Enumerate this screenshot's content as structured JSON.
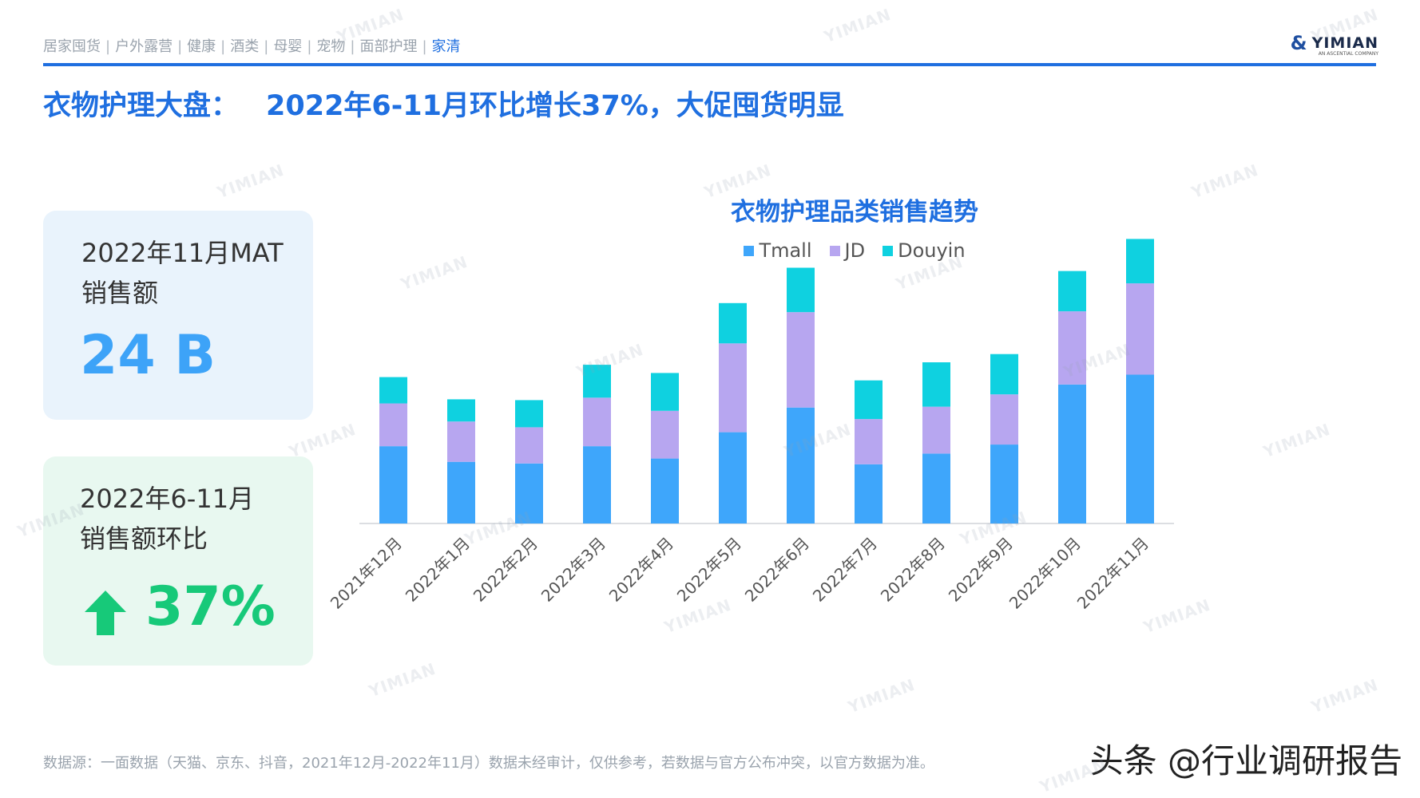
{
  "header": {
    "nav_items": [
      {
        "label": "居家囤货",
        "active": false
      },
      {
        "label": "户外露营",
        "active": false
      },
      {
        "label": "健康",
        "active": false
      },
      {
        "label": "酒类",
        "active": false
      },
      {
        "label": "母婴",
        "active": false
      },
      {
        "label": "宠物",
        "active": false
      },
      {
        "label": "面部护理",
        "active": false
      },
      {
        "label": "家清",
        "active": true
      }
    ],
    "separator": "|",
    "logo_text": "YIMIAN",
    "logo_subtext": "AN ASCENTIAL COMPANY",
    "accent_color": "#1f6fe0"
  },
  "page_title": {
    "prefix": "衣物护理大盘：",
    "headline": "2022年6-11月环比增长37%，大促囤货明显"
  },
  "cards": {
    "mat": {
      "label_line1": "2022年11月MAT",
      "label_line2": "销售额",
      "value": "24 B",
      "color": "#3da3f8"
    },
    "mom": {
      "label_line1": "2022年6-11月",
      "label_line2": "销售额环比",
      "value": "37%",
      "color": "#17c979",
      "icon": "up-arrow-icon"
    }
  },
  "chart_data": {
    "type": "bar",
    "stacked": true,
    "title": "衣物护理品类销售趋势",
    "categories": [
      "2021年12月",
      "2022年1月",
      "2022年2月",
      "2022年3月",
      "2022年4月",
      "2022年5月",
      "2022年6月",
      "2022年7月",
      "2022年8月",
      "2022年9月",
      "2022年10月",
      "2022年11月"
    ],
    "series": [
      {
        "name": "Tmall",
        "color": "#3ea6fb",
        "values": [
          94,
          75,
          73,
          94,
          79,
          111,
          141,
          72,
          85,
          96,
          169,
          181
        ]
      },
      {
        "name": "JD",
        "color": "#b7a6f0",
        "values": [
          52,
          49,
          44,
          59,
          58,
          108,
          116,
          55,
          57,
          61,
          89,
          111
        ]
      },
      {
        "name": "Douyin",
        "color": "#0fd1e0",
        "values": [
          32,
          27,
          33,
          40,
          46,
          49,
          54,
          47,
          54,
          49,
          49,
          54
        ]
      }
    ],
    "yaxis_visible": false,
    "ylim": [
      0,
      360
    ],
    "grid": false,
    "legend_position": "top-center"
  },
  "footer": {
    "source": "数据源：一面数据（天猫、京东、抖音，2021年12月-2022年11月）数据未经审计，仅供参考，若数据与官方公布冲突，以官方数据为准。",
    "credit": "头条 @行业调研报告"
  },
  "watermark": "YIMIAN"
}
